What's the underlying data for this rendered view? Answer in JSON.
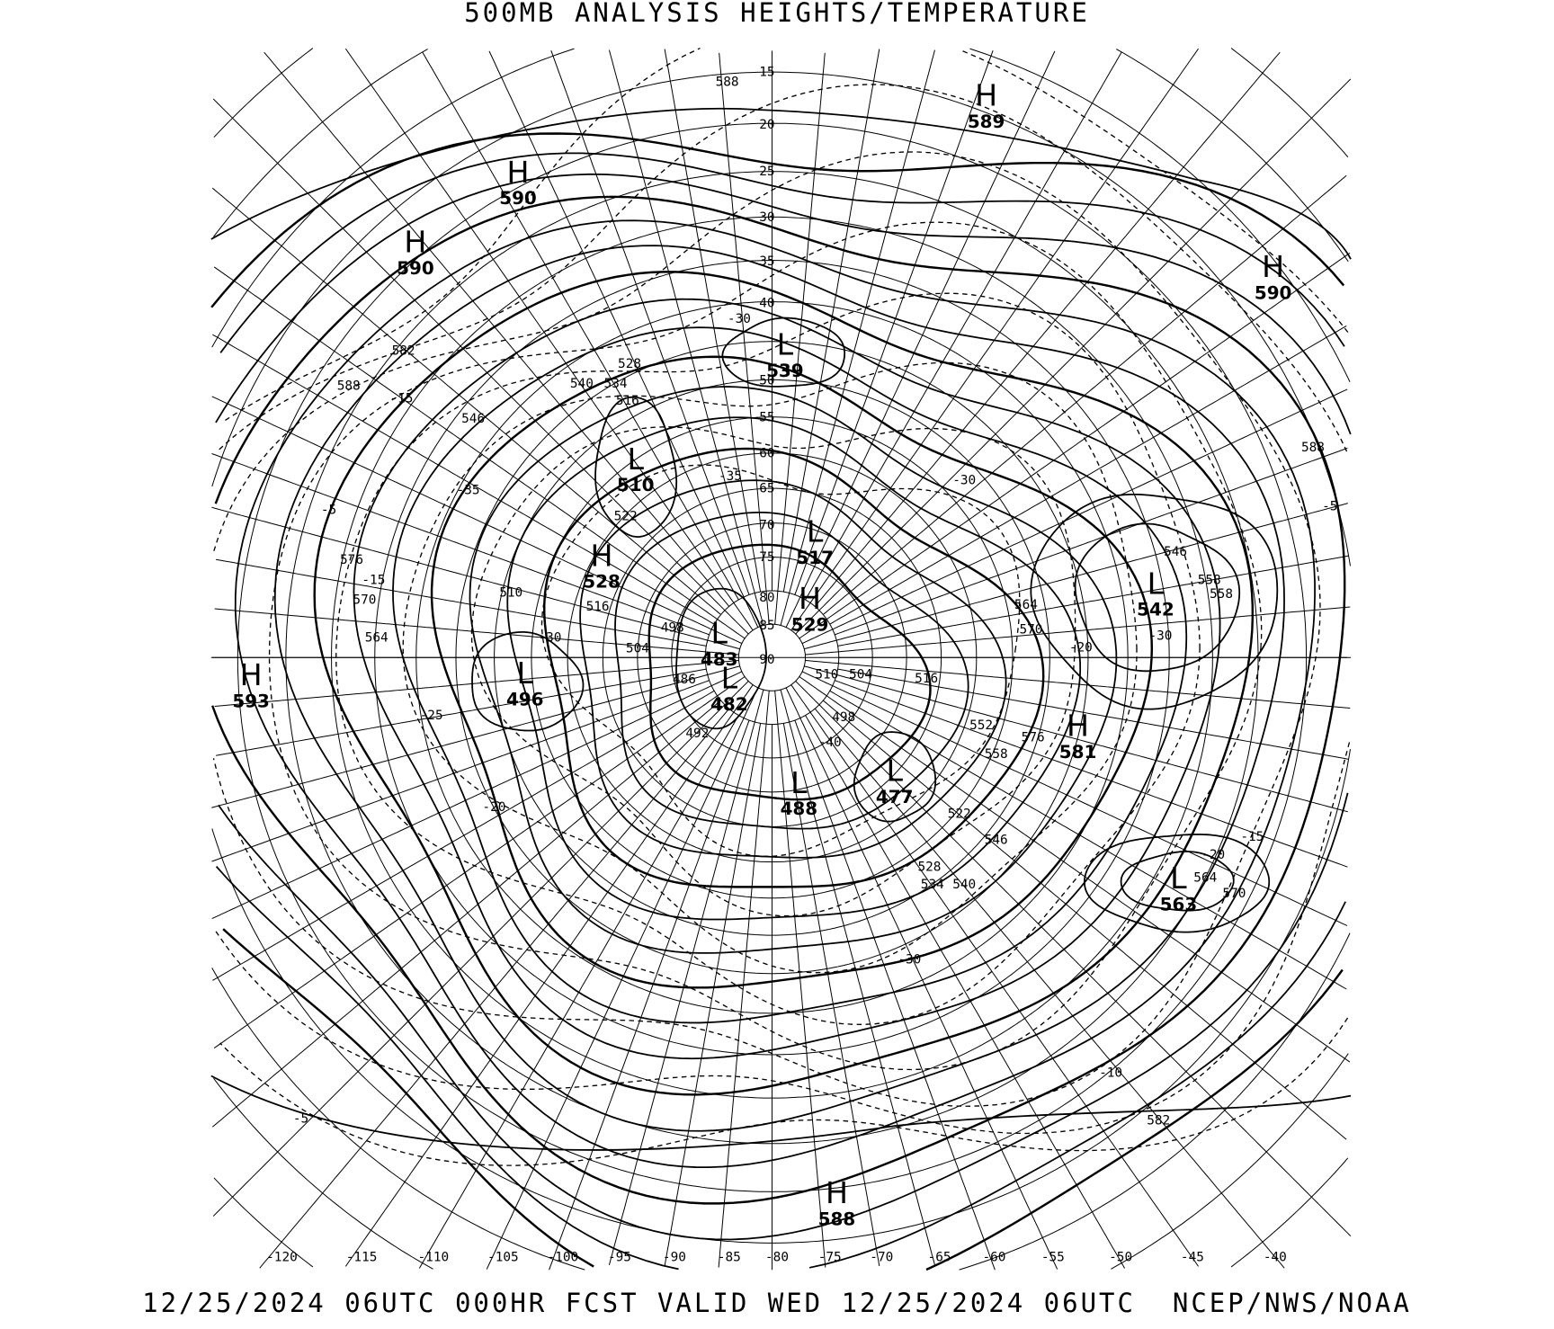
{
  "title": "500MB ANALYSIS  HEIGHTS/TEMPERATURE",
  "footer": "12/25/2024 06UTC 000HR FCST VALID WED 12/25/2024 06UTC  NCEP/NWS/NOAA",
  "map": {
    "projection": "polar stereographic",
    "longitude_labels": [
      "-120",
      "-115",
      "-110",
      "-105",
      "-100",
      "-95",
      "-90",
      "-85",
      "-80",
      "-75",
      "-70",
      "-65",
      "-60",
      "-55",
      "-50",
      "-45",
      "-40"
    ],
    "latitude_labels": [
      "15",
      "20",
      "25",
      "30",
      "35",
      "40",
      "50",
      "55",
      "60",
      "65",
      "70",
      "75",
      "80",
      "85",
      "90"
    ],
    "pressure_centers": [
      {
        "type": "H",
        "value": "589"
      },
      {
        "type": "H",
        "value": "590"
      },
      {
        "type": "H",
        "value": "590"
      },
      {
        "type": "H",
        "value": "590"
      },
      {
        "type": "L",
        "value": "539"
      },
      {
        "type": "L",
        "value": "510"
      },
      {
        "type": "L",
        "value": "517"
      },
      {
        "type": "H",
        "value": "529"
      },
      {
        "type": "H",
        "value": "528"
      },
      {
        "type": "L",
        "value": "542"
      },
      {
        "type": "L",
        "value": "483"
      },
      {
        "type": "L",
        "value": "482"
      },
      {
        "type": "L",
        "value": "496"
      },
      {
        "type": "H",
        "value": "593"
      },
      {
        "type": "H",
        "value": "581"
      },
      {
        "type": "L",
        "value": "477"
      },
      {
        "type": "L",
        "value": "488"
      },
      {
        "type": "L",
        "value": "563"
      },
      {
        "type": "H",
        "value": "588"
      }
    ],
    "height_contour_labels": [
      "588",
      "582",
      "588",
      "546",
      "540",
      "534",
      "528",
      "516",
      "510",
      "516",
      "504",
      "498",
      "522",
      "576",
      "570",
      "564",
      "558",
      "558",
      "546",
      "564",
      "570",
      "576",
      "558",
      "552",
      "546",
      "522",
      "528",
      "534",
      "540",
      "570",
      "564",
      "582",
      "588",
      "510",
      "504",
      "498",
      "516",
      "486",
      "492"
    ],
    "temperature_contour_labels": [
      "-5",
      "-10",
      "-15",
      "-20",
      "-30",
      "-35",
      "-35",
      "-30",
      "-25",
      "-20",
      "-15",
      "-5",
      "-5",
      "-40",
      "-30",
      "-30",
      "-20",
      "-15",
      "-30"
    ]
  }
}
